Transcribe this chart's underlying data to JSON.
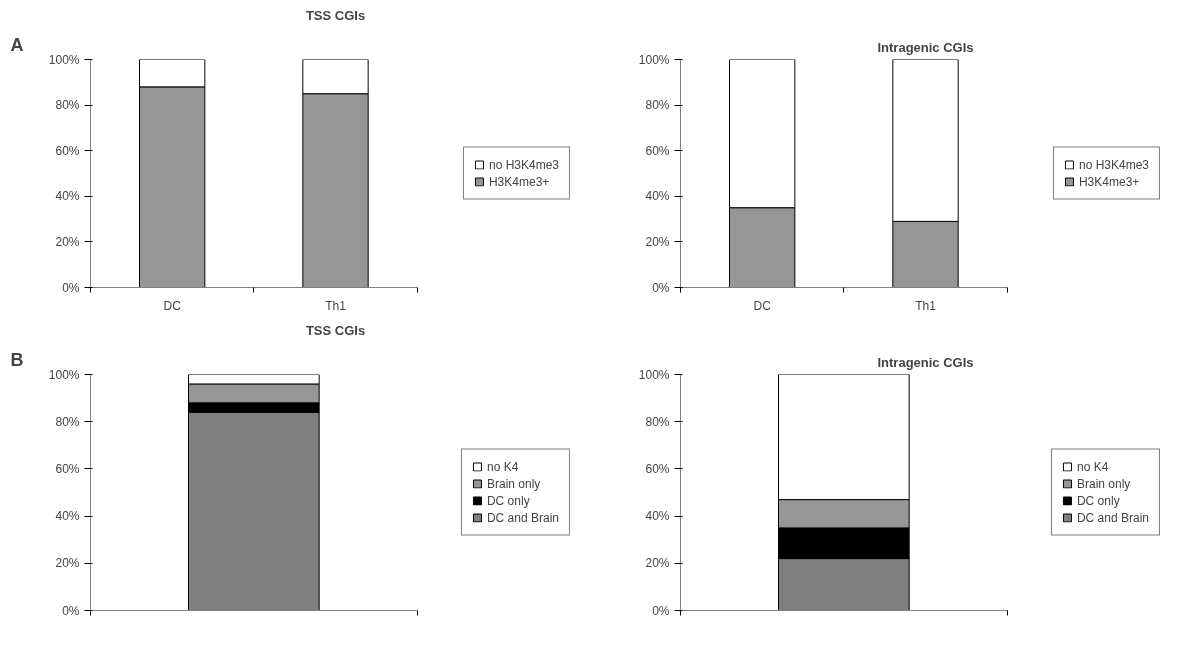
{
  "chart_data": [
    {
      "type": "bar",
      "stacked": true,
      "title": "TSS CGIs",
      "annotations": [
        "A"
      ],
      "categories": [
        "DC",
        "Th1"
      ],
      "legend": "right",
      "grid": false,
      "ylim": [
        0,
        100
      ],
      "yticks": [
        {
          "value": 0,
          "label": "0%"
        },
        {
          "value": 20,
          "label": "20%"
        },
        {
          "value": 40,
          "label": "40%"
        },
        {
          "value": 60,
          "label": "60%"
        },
        {
          "value": 80,
          "label": "80%"
        },
        {
          "value": 100,
          "label": "100%"
        }
      ],
      "series": [
        {
          "name": "H3K4me3+",
          "color": "#969696",
          "values": [
            88,
            85
          ]
        },
        {
          "name": "no H3K4me3",
          "color": "#ffffff",
          "values": [
            12,
            15
          ]
        }
      ]
    },
    {
      "type": "bar",
      "stacked": true,
      "title": "Intragenic CGIs",
      "categories": [
        "DC",
        "Th1"
      ],
      "legend": "right",
      "grid": false,
      "ylim": [
        0,
        100
      ],
      "yticks": [
        {
          "value": 0,
          "label": "0%"
        },
        {
          "value": 20,
          "label": "20%"
        },
        {
          "value": 40,
          "label": "40%"
        },
        {
          "value": 60,
          "label": "60%"
        },
        {
          "value": 80,
          "label": "80%"
        },
        {
          "value": 100,
          "label": "100%"
        }
      ],
      "series": [
        {
          "name": "H3K4me3+",
          "color": "#969696",
          "values": [
            35,
            29
          ]
        },
        {
          "name": "no H3K4me3",
          "color": "#ffffff",
          "values": [
            65,
            71
          ]
        }
      ]
    },
    {
      "type": "bar",
      "stacked": true,
      "title": "TSS CGIs",
      "annotations": [
        "B"
      ],
      "categories": [
        null
      ],
      "legend": "right",
      "grid": false,
      "tick_labels": "y",
      "ylim": [
        0,
        100
      ],
      "yticks": [
        {
          "value": 0,
          "label": "0%"
        },
        {
          "value": 20,
          "label": "20%"
        },
        {
          "value": 40,
          "label": "40%"
        },
        {
          "value": 60,
          "label": "60%"
        },
        {
          "value": 80,
          "label": "80%"
        },
        {
          "value": 100,
          "label": "100%"
        }
      ],
      "series": [
        {
          "name": "DC and Brain",
          "color": "#808080",
          "values": [
            84
          ]
        },
        {
          "name": "DC only",
          "color": "#000000",
          "values": [
            4
          ]
        },
        {
          "name": "Brain only",
          "color": "#969696",
          "values": [
            8
          ]
        },
        {
          "name": "no K4",
          "color": "#ffffff",
          "values": [
            4
          ]
        }
      ]
    },
    {
      "type": "bar",
      "stacked": true,
      "title": "Intragenic CGIs",
      "categories": [
        null
      ],
      "legend": "right",
      "grid": false,
      "tick_labels": "y",
      "ylim": [
        0,
        100
      ],
      "yticks": [
        {
          "value": 0,
          "label": "0%"
        },
        {
          "value": 20,
          "label": "20%"
        },
        {
          "value": 40,
          "label": "40%"
        },
        {
          "value": 60,
          "label": "60%"
        },
        {
          "value": 80,
          "label": "80%"
        },
        {
          "value": 100,
          "label": "100%"
        }
      ],
      "series": [
        {
          "name": "DC and Brain",
          "color": "#808080",
          "values": [
            22
          ]
        },
        {
          "name": "DC only",
          "color": "#000000",
          "values": [
            13
          ]
        },
        {
          "name": "Brain only",
          "color": "#969696",
          "values": [
            12
          ]
        },
        {
          "name": "no K4",
          "color": "#ffffff",
          "values": [
            53
          ]
        }
      ]
    }
  ]
}
